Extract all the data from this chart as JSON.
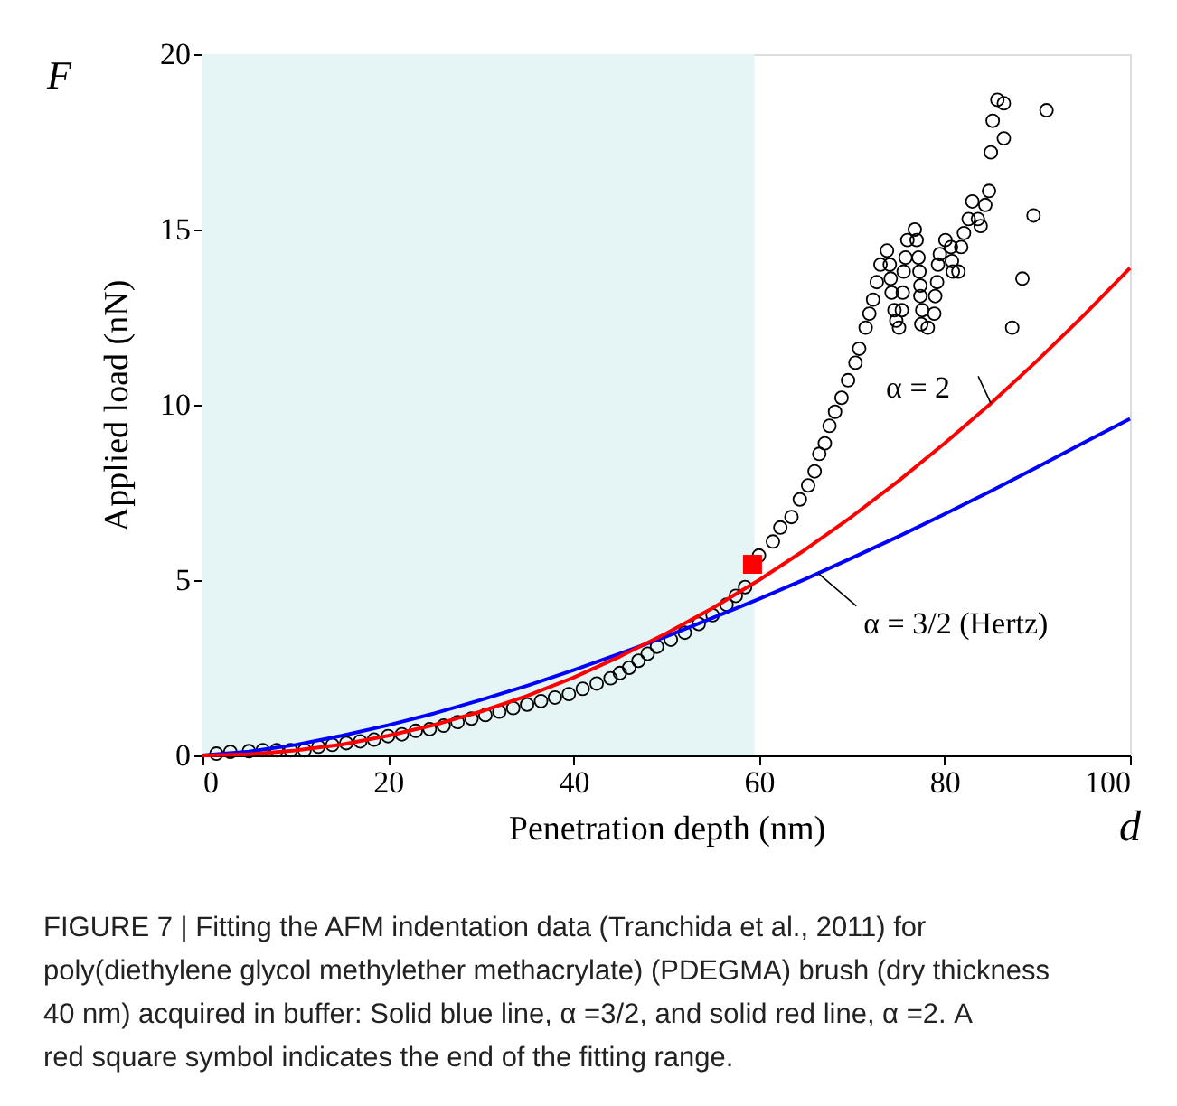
{
  "chart_data": {
    "type": "scatter",
    "xlabel": "Penetration depth (nm)",
    "ylabel": "Applied load (nN)",
    "xlim": [
      0,
      100
    ],
    "xticks": [
      0,
      20,
      40,
      60,
      80,
      100
    ],
    "ylim": [
      0,
      20
    ],
    "yticks": [
      0,
      5,
      10,
      15,
      20
    ],
    "grid": false,
    "bands": [
      {
        "axis": "x",
        "from": 0,
        "to": 59.5,
        "color": "#e5f4f5"
      }
    ],
    "series": [
      {
        "type": "scatter",
        "marker": "circle",
        "color": "#000000",
        "x": [
          1.5,
          3,
          5,
          6.5,
          8,
          9.5,
          11,
          12.5,
          14,
          15.5,
          17,
          18.5,
          20,
          21.5,
          23,
          24.5,
          26,
          27.5,
          29,
          30.5,
          32,
          33.5,
          35,
          36.5,
          38,
          39.5,
          41,
          42.5,
          44,
          45,
          46,
          47,
          48,
          49,
          50.5,
          52,
          53.5,
          55,
          56.5,
          57.5,
          58.5,
          60.0,
          61.5,
          62.3,
          63.5,
          64.4,
          65.3,
          66.0,
          66.5,
          67.1,
          67.6,
          68.2,
          68.9,
          69.6,
          70.4,
          70.8,
          71.5,
          71.9,
          72.3,
          72.7,
          73.1,
          73.8,
          74.1,
          74.2,
          74.3,
          74.6,
          74.8,
          75.1,
          75.4,
          75.5,
          75.6,
          75.8,
          76.0,
          76.8,
          77.0,
          77.2,
          77.3,
          77.4,
          77.4,
          77.6,
          77.5,
          78.2,
          78.9,
          79.0,
          79.2,
          79.3,
          79.5,
          80.1,
          80.7,
          80.8,
          80.9,
          81.5,
          81.8,
          82.1,
          82.6,
          83.6,
          83.9,
          83.0,
          84.4,
          84.8,
          85.0,
          86.4,
          85.2,
          85.7,
          86.4,
          91.0,
          89.6,
          88.4,
          87.3
        ],
        "values": [
          0.05,
          0.1,
          0.12,
          0.15,
          0.15,
          0.15,
          0.15,
          0.25,
          0.3,
          0.35,
          0.4,
          0.45,
          0.55,
          0.6,
          0.7,
          0.75,
          0.85,
          0.95,
          1.05,
          1.15,
          1.25,
          1.35,
          1.45,
          1.55,
          1.65,
          1.75,
          1.9,
          2.05,
          2.2,
          2.35,
          2.5,
          2.7,
          2.9,
          3.1,
          3.3,
          3.5,
          3.75,
          4.0,
          4.3,
          4.55,
          4.8,
          5.7,
          6.1,
          6.5,
          6.8,
          7.3,
          7.7,
          8.1,
          8.6,
          8.9,
          9.4,
          9.8,
          10.2,
          10.7,
          11.2,
          11.6,
          12.2,
          12.6,
          13.0,
          13.5,
          14.0,
          14.4,
          14.0,
          13.6,
          13.2,
          12.7,
          12.4,
          12.2,
          12.7,
          13.2,
          13.8,
          14.2,
          14.7,
          15.0,
          14.7,
          14.2,
          13.8,
          13.4,
          13.1,
          12.7,
          12.3,
          12.2,
          12.6,
          13.1,
          13.5,
          14.0,
          14.3,
          14.7,
          14.5,
          14.1,
          13.8,
          13.8,
          14.5,
          14.9,
          15.3,
          15.3,
          15.1,
          15.8,
          15.7,
          16.1,
          17.2,
          17.6,
          18.1,
          18.7,
          18.6,
          18.4,
          15.4,
          13.6,
          12.2
        ]
      },
      {
        "type": "line",
        "color": "#0000ff",
        "x": [
          0,
          5,
          10,
          15,
          20,
          25,
          30,
          35,
          40,
          45,
          50,
          55,
          60,
          65,
          70,
          75,
          80,
          85,
          90,
          95,
          100
        ],
        "values": [
          0,
          0.11,
          0.3,
          0.56,
          0.86,
          1.2,
          1.58,
          1.99,
          2.43,
          2.9,
          3.39,
          3.92,
          4.46,
          5.03,
          5.63,
          6.24,
          6.88,
          7.54,
          8.22,
          8.92,
          9.6
        ]
      },
      {
        "type": "line",
        "color": "#ff0000",
        "x": [
          0,
          5,
          10,
          15,
          20,
          25,
          30,
          35,
          40,
          45,
          50,
          55,
          60,
          65,
          70,
          75,
          80,
          85,
          90,
          95,
          100
        ],
        "values": [
          0,
          0.03,
          0.14,
          0.31,
          0.56,
          0.87,
          1.25,
          1.7,
          2.22,
          2.82,
          3.48,
          4.2,
          5.0,
          5.87,
          6.81,
          7.82,
          8.9,
          10.04,
          11.26,
          12.55,
          13.9
        ]
      },
      {
        "type": "scatter",
        "marker": "square",
        "color": "#ff0000",
        "x": [
          59.3
        ],
        "values": [
          5.45
        ]
      }
    ],
    "annotations": [
      {
        "text": "α = 2",
        "x": 85,
        "y": 10.04
      },
      {
        "text": "α = 3/2 (Hertz)",
        "x": 66.4,
        "y": 5.19
      },
      "F",
      "d",
      "FIGURE 7 | Fitting the AFM indentation data (Tranchida et al., 2011) for poly(diethylene glycol methylether methacrylate) (PDEGMA) brush (dry thickness 40 nm) acquired in buffer: Solid blue line, α =3/2, and solid red line, α =2. A red square symbol indicates the end of the fitting range."
    ]
  }
}
